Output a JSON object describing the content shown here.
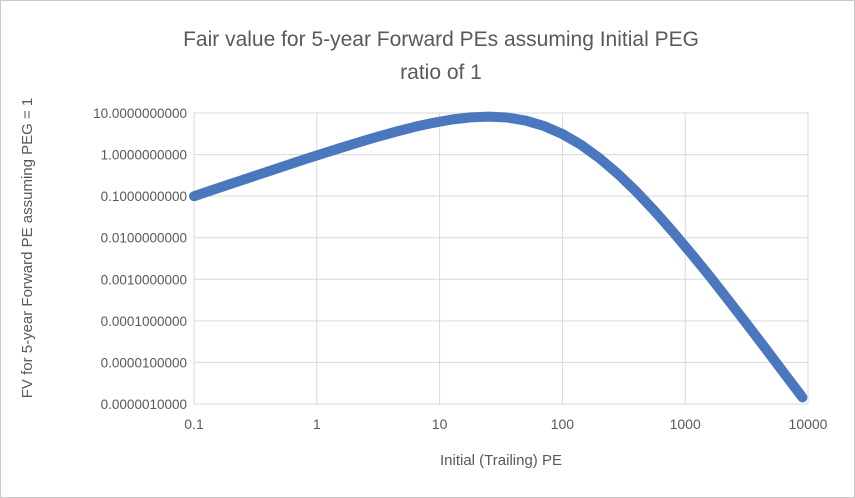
{
  "chart": {
    "title_line1": "Fair value for 5-year Forward PEs assuming Initial PEG",
    "title_line2": "ratio of 1",
    "y_axis_title": "FV for 5-year Forward PE assuming PEG = 1",
    "x_axis_title": "Initial (Trailing) PE"
  },
  "colors": {
    "line": "#4A77BD",
    "grid": "#D9D9D9",
    "text": "#595959",
    "border": "#C9C9C9",
    "background": "#FFFFFF"
  },
  "chart_data": {
    "type": "line",
    "title": "Fair value for 5-year Forward PEs assuming Initial PEG ratio of 1",
    "xlabel": "Initial (Trailing) PE",
    "ylabel": "FV for 5-year Forward PE assuming PEG = 1",
    "x_scale": "log",
    "y_scale": "log",
    "xlim": [
      0.1,
      10000
    ],
    "ylim": [
      1e-06,
      10
    ],
    "grid": true,
    "legend": false,
    "x_ticks": [
      {
        "value": 0.1,
        "label": "0.1"
      },
      {
        "value": 1,
        "label": "1"
      },
      {
        "value": 10,
        "label": "10"
      },
      {
        "value": 100,
        "label": "100"
      },
      {
        "value": 1000,
        "label": "1000"
      },
      {
        "value": 10000,
        "label": "10000"
      }
    ],
    "y_ticks": [
      {
        "value": 10,
        "label": "10.0000000000"
      },
      {
        "value": 1,
        "label": "1.0000000000"
      },
      {
        "value": 0.1,
        "label": "0.1000000000"
      },
      {
        "value": 0.01,
        "label": "0.0100000000"
      },
      {
        "value": 0.001,
        "label": "0.0010000000"
      },
      {
        "value": 0.0001,
        "label": "0.0001000000"
      },
      {
        "value": 1e-05,
        "label": "0.0000100000"
      },
      {
        "value": 1e-06,
        "label": "0.0000010000"
      }
    ],
    "series": [
      {
        "name": "FV for 5-year Forward PE",
        "line_width": 10,
        "points": [
          [
            0.1,
            0.0995
          ],
          [
            0.1413,
            0.1403
          ],
          [
            0.1995,
            0.1975
          ],
          [
            0.2818,
            0.2779
          ],
          [
            0.3981,
            0.3903
          ],
          [
            0.5623,
            0.5468
          ],
          [
            0.7943,
            0.7635
          ],
          [
            1.122,
            1.061
          ],
          [
            1.585,
            1.465
          ],
          [
            2.239,
            2.004
          ],
          [
            3.162,
            2.706
          ],
          [
            4.467,
            3.59
          ],
          [
            6.31,
            4.646
          ],
          [
            8.913,
            5.816
          ],
          [
            12.59,
            6.958
          ],
          [
            17.78,
            7.844
          ],
          [
            25.12,
            8.192
          ],
          [
            35.48,
            7.773
          ],
          [
            50.12,
            6.574
          ],
          [
            70.79,
            4.872
          ],
          [
            100,
            3.125
          ],
          [
            141.3,
            1.727
          ],
          [
            199.5,
            0.8278
          ],
          [
            281.8,
            0.3469
          ],
          [
            398.1,
            0.1297
          ],
          [
            562.3,
            0.04415
          ],
          [
            794.3,
            0.01387
          ],
          [
            1122,
            0.004118
          ],
          [
            1585,
            0.001171
          ],
          [
            2239,
            0.0003194
          ],
          [
            3162,
            8.546e-05
          ],
          [
            4467,
            2.248e-05
          ],
          [
            6310,
            5.826e-06
          ],
          [
            9000,
            1.442e-06
          ]
        ]
      }
    ]
  }
}
